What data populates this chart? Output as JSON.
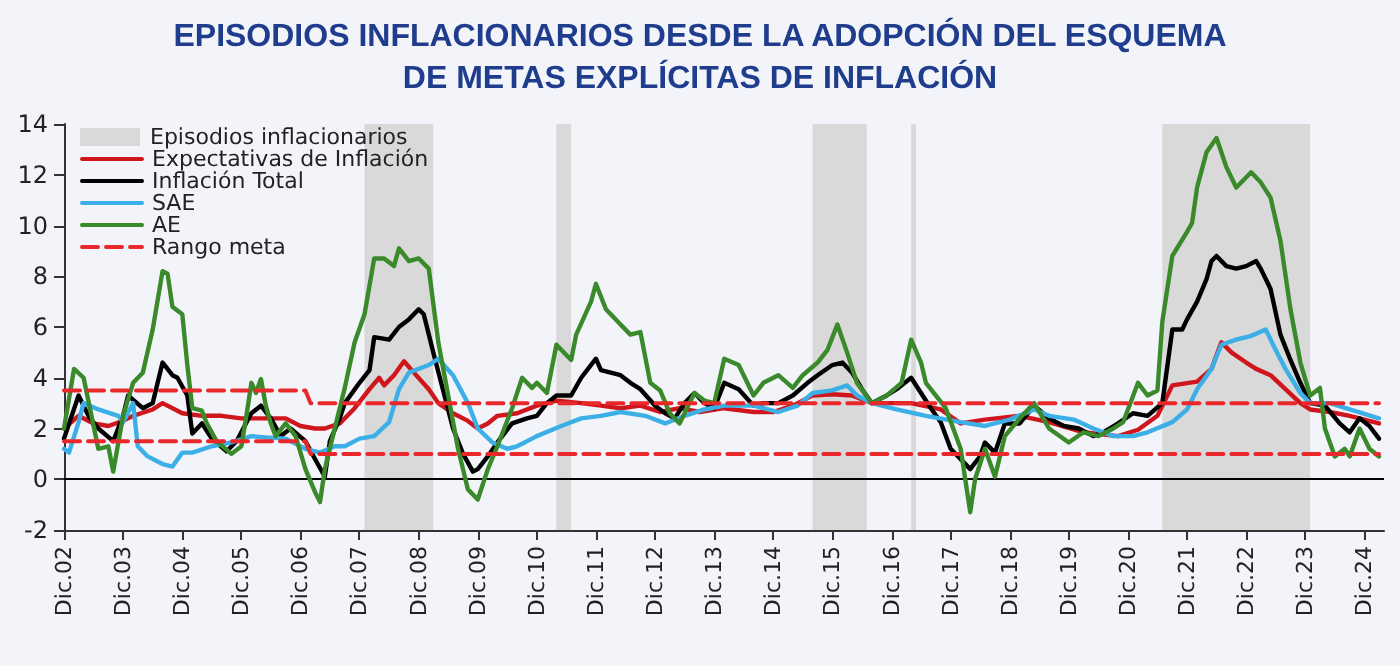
{
  "chart_data": {
    "type": "line",
    "title": "EPISODIOS INFLACIONARIOS DESDE LA ADOPCIÓN DEL ESQUEMA\nDE METAS EXPLÍCITAS DE INFLACIÓN",
    "xlim": [
      "2002-12",
      "2025-04"
    ],
    "xticks": [
      {
        "value": "2002-12",
        "label": "Dic.02"
      },
      {
        "value": "2003-12",
        "label": "Dic.03"
      },
      {
        "value": "2004-12",
        "label": "Dic.04"
      },
      {
        "value": "2005-12",
        "label": "Dic.05"
      },
      {
        "value": "2006-12",
        "label": "Dic.06"
      },
      {
        "value": "2007-12",
        "label": "Dic.07"
      },
      {
        "value": "2008-12",
        "label": "Dic.08"
      },
      {
        "value": "2009-12",
        "label": "Dic.09"
      },
      {
        "value": "2010-12",
        "label": "Dic.10"
      },
      {
        "value": "2011-12",
        "label": "Dic.11"
      },
      {
        "value": "2012-12",
        "label": "Dic.12"
      },
      {
        "value": "2013-12",
        "label": "Dic.13"
      },
      {
        "value": "2014-12",
        "label": "Dic.14"
      },
      {
        "value": "2015-12",
        "label": "Dic.15"
      },
      {
        "value": "2016-12",
        "label": "Dic.16"
      },
      {
        "value": "2017-12",
        "label": "Dic.17"
      },
      {
        "value": "2018-12",
        "label": "Dic.18"
      },
      {
        "value": "2019-12",
        "label": "Dic.19"
      },
      {
        "value": "2020-12",
        "label": "Dic.20"
      },
      {
        "value": "2021-12",
        "label": "Dic.21"
      },
      {
        "value": "2022-12",
        "label": "Dic.22"
      },
      {
        "value": "2023-12",
        "label": "Dic.23"
      },
      {
        "value": "2024-12",
        "label": "Dic.24"
      }
    ],
    "ylim": [
      -2,
      14
    ],
    "yticks": [
      -2,
      0,
      2,
      4,
      6,
      8,
      10,
      12,
      14
    ],
    "grid": false,
    "legend": "top left",
    "marker": "none",
    "line_style": "solid",
    "bands": [
      {
        "axis": "x",
        "from": "2008-01",
        "to": "2009-03",
        "label": "Episodios inflacionarios",
        "color": "#d9d9d9"
      },
      {
        "axis": "x",
        "from": "2011-04",
        "to": "2011-07",
        "color": "#d9d9d9"
      },
      {
        "axis": "x",
        "from": "2015-08",
        "to": "2016-07",
        "color": "#d9d9d9"
      },
      {
        "axis": "x",
        "from": "2017-04",
        "to": "2017-05",
        "color": "#d9d9d9"
      },
      {
        "axis": "x",
        "from": "2021-07",
        "to": "2024-01",
        "color": "#d9d9d9"
      }
    ],
    "ref_lines": [
      {
        "axis": "y",
        "value": 0,
        "color": "#000000"
      }
    ],
    "series": [
      {
        "name": "Expectativas de Inflación",
        "color": "#d0161d",
        "x": [
          "2002-12",
          "2003-03",
          "2003-06",
          "2003-09",
          "2003-12",
          "2004-02",
          "2004-06",
          "2004-08",
          "2004-12",
          "2005-04",
          "2005-08",
          "2005-12",
          "2006-05",
          "2006-09",
          "2006-12",
          "2007-03",
          "2007-05",
          "2007-08",
          "2007-11",
          "2008-02",
          "2008-04",
          "2008-05",
          "2008-07",
          "2008-09",
          "2008-11",
          "2009-02",
          "2009-04",
          "2009-07",
          "2009-10",
          "2009-12",
          "2010-02",
          "2010-04",
          "2010-08",
          "2010-12",
          "2011-04",
          "2011-09",
          "2012-01",
          "2012-05",
          "2012-09",
          "2013-01",
          "2013-05",
          "2013-09",
          "2014-02",
          "2014-08",
          "2014-12",
          "2015-04",
          "2015-08",
          "2015-12",
          "2016-04",
          "2016-08",
          "2017-04",
          "2017-10",
          "2018-02",
          "2018-07",
          "2019-02",
          "2019-08",
          "2020-03",
          "2020-10",
          "2021-02",
          "2021-06",
          "2021-09",
          "2022-02",
          "2022-05",
          "2022-07",
          "2022-09",
          "2022-12",
          "2023-02",
          "2023-05",
          "2023-08",
          "2023-11",
          "2024-01",
          "2024-05",
          "2024-09",
          "2025-03"
        ],
        "values": [
          2.0,
          2.5,
          2.2,
          2.1,
          2.3,
          2.5,
          2.75,
          3.0,
          2.6,
          2.5,
          2.5,
          2.4,
          2.4,
          2.4,
          2.1,
          2.0,
          2.0,
          2.2,
          2.8,
          3.55,
          4.0,
          3.7,
          4.1,
          4.65,
          4.2,
          3.55,
          3.0,
          2.6,
          2.3,
          2.0,
          2.2,
          2.5,
          2.6,
          2.9,
          3.1,
          3.0,
          2.9,
          2.8,
          2.9,
          2.65,
          2.8,
          2.65,
          2.8,
          2.65,
          2.65,
          2.9,
          3.3,
          3.35,
          3.3,
          3.0,
          3.0,
          2.75,
          2.2,
          2.35,
          2.5,
          2.25,
          1.85,
          1.7,
          1.95,
          2.5,
          3.7,
          3.85,
          4.35,
          5.4,
          5.0,
          4.6,
          4.35,
          4.1,
          3.55,
          3.0,
          2.75,
          2.65,
          2.5,
          2.2
        ]
      },
      {
        "name": "Inflación Total",
        "color": "#000000",
        "x": [
          "2002-12",
          "2003-03",
          "2003-05",
          "2003-07",
          "2003-10",
          "2003-12",
          "2004-01",
          "2004-04",
          "2004-06",
          "2004-08",
          "2004-10",
          "2004-11",
          "2005-01",
          "2005-02",
          "2005-04",
          "2005-06",
          "2005-09",
          "2005-11",
          "2006-02",
          "2006-04",
          "2006-06",
          "2006-08",
          "2006-10",
          "2007-01",
          "2007-03",
          "2007-05",
          "2007-06",
          "2007-08",
          "2007-09",
          "2007-12",
          "2008-02",
          "2008-03",
          "2008-06",
          "2008-08",
          "2008-10",
          "2008-12",
          "2009-01",
          "2009-03",
          "2009-05",
          "2009-07",
          "2009-09",
          "2009-11",
          "2009-12",
          "2010-02",
          "2010-04",
          "2010-07",
          "2010-10",
          "2010-12",
          "2011-02",
          "2011-04",
          "2011-07",
          "2011-09",
          "2011-12",
          "2012-01",
          "2012-05",
          "2012-07",
          "2012-09",
          "2012-12",
          "2013-02",
          "2013-04",
          "2013-06",
          "2013-08",
          "2013-10",
          "2013-12",
          "2014-02",
          "2014-05",
          "2014-08",
          "2014-10",
          "2015-01",
          "2015-04",
          "2015-07",
          "2015-09",
          "2015-12",
          "2016-02",
          "2016-04",
          "2016-06",
          "2016-08",
          "2016-11",
          "2017-01",
          "2017-04",
          "2017-06",
          "2017-08",
          "2017-10",
          "2017-12",
          "2018-04",
          "2018-06",
          "2018-07",
          "2018-09",
          "2018-11",
          "2019-02",
          "2019-05",
          "2019-08",
          "2019-11",
          "2020-02",
          "2020-05",
          "2020-07",
          "2020-10",
          "2021-01",
          "2021-04",
          "2021-07",
          "2021-09",
          "2021-11",
          "2021-12",
          "2022-02",
          "2022-04",
          "2022-05",
          "2022-06",
          "2022-08",
          "2022-10",
          "2022-12",
          "2023-02",
          "2023-03",
          "2023-05",
          "2023-07",
          "2023-09",
          "2023-11",
          "2024-01",
          "2024-04",
          "2024-07",
          "2024-09",
          "2024-11",
          "2025-01",
          "2025-03"
        ],
        "values": [
          1.6,
          3.3,
          2.5,
          2.0,
          1.5,
          2.5,
          3.3,
          2.8,
          3.0,
          4.6,
          4.1,
          4.0,
          3.3,
          1.8,
          2.2,
          1.6,
          1.1,
          1.5,
          2.6,
          2.9,
          2.4,
          1.7,
          2.0,
          1.5,
          0.8,
          0.1,
          1.5,
          2.4,
          3.0,
          3.8,
          4.3,
          5.6,
          5.5,
          6.0,
          6.3,
          6.7,
          6.5,
          5.0,
          3.5,
          2.0,
          1.0,
          0.3,
          0.4,
          0.9,
          1.45,
          2.2,
          2.4,
          2.5,
          3.0,
          3.3,
          3.3,
          4.0,
          4.75,
          4.3,
          4.1,
          3.8,
          3.55,
          2.9,
          2.6,
          2.4,
          3.0,
          3.4,
          3.0,
          2.8,
          3.8,
          3.55,
          2.9,
          3.0,
          3.0,
          3.3,
          3.8,
          4.1,
          4.5,
          4.6,
          4.2,
          3.55,
          3.0,
          3.3,
          3.55,
          4.0,
          3.4,
          2.8,
          2.25,
          1.2,
          0.4,
          0.9,
          1.45,
          1.05,
          2.2,
          2.2,
          2.9,
          2.4,
          2.1,
          2.0,
          1.7,
          1.85,
          2.2,
          2.6,
          2.5,
          3.0,
          5.9,
          5.9,
          6.3,
          7.0,
          7.9,
          8.6,
          8.8,
          8.4,
          8.3,
          8.4,
          8.6,
          8.3,
          7.5,
          5.7,
          4.7,
          3.8,
          3.0,
          2.9,
          2.2,
          1.85,
          2.4,
          2.1,
          1.6
        ]
      },
      {
        "name": "SAE",
        "color": "#3cb0e6",
        "x": [
          "2002-12",
          "2003-01",
          "2003-03",
          "2003-04",
          "2003-07",
          "2003-11",
          "2003-12",
          "2004-02",
          "2004-03",
          "2004-05",
          "2004-08",
          "2004-10",
          "2004-12",
          "2005-02",
          "2005-06",
          "2005-10",
          "2006-02",
          "2006-05",
          "2006-09",
          "2007-01",
          "2007-04",
          "2007-07",
          "2007-09",
          "2007-12",
          "2008-03",
          "2008-06",
          "2008-08",
          "2008-10",
          "2009-02",
          "2009-04",
          "2009-07",
          "2009-10",
          "2009-12",
          "2010-03",
          "2010-06",
          "2010-08",
          "2010-12",
          "2011-05",
          "2011-09",
          "2012-01",
          "2012-05",
          "2012-10",
          "2013-02",
          "2013-06",
          "2013-10",
          "2014-02",
          "2014-08",
          "2015-01",
          "2015-05",
          "2015-08",
          "2015-12",
          "2016-03",
          "2016-05",
          "2016-08",
          "2017-01",
          "2017-07",
          "2018-02",
          "2018-07",
          "2018-12",
          "2019-05",
          "2019-08",
          "2020-01",
          "2020-05",
          "2020-09",
          "2021-01",
          "2021-04",
          "2021-09",
          "2021-12",
          "2022-02",
          "2022-05",
          "2022-07",
          "2022-10",
          "2023-01",
          "2023-04",
          "2023-06",
          "2023-08",
          "2023-11",
          "2024-01",
          "2024-05",
          "2024-09",
          "2025-03"
        ],
        "values": [
          1.2,
          1.05,
          2.25,
          3.0,
          2.75,
          2.5,
          2.25,
          3.0,
          1.3,
          0.9,
          0.6,
          0.5,
          1.05,
          1.05,
          1.3,
          1.45,
          1.7,
          1.65,
          1.6,
          1.2,
          1.05,
          1.3,
          1.3,
          1.6,
          1.7,
          2.25,
          3.55,
          4.2,
          4.5,
          4.75,
          4.1,
          3.0,
          2.0,
          1.45,
          1.2,
          1.3,
          1.7,
          2.1,
          2.4,
          2.5,
          2.65,
          2.5,
          2.2,
          2.5,
          2.75,
          2.9,
          2.9,
          2.65,
          2.9,
          3.4,
          3.5,
          3.7,
          3.3,
          3.0,
          2.75,
          2.5,
          2.25,
          2.1,
          2.35,
          2.75,
          2.5,
          2.35,
          2.0,
          1.7,
          1.7,
          1.85,
          2.25,
          2.75,
          3.55,
          4.35,
          5.3,
          5.5,
          5.65,
          5.9,
          5.1,
          4.35,
          3.4,
          3.0,
          3.0,
          2.75,
          2.4
        ]
      },
      {
        "name": "AE",
        "color": "#3a8a2c",
        "x": [
          "2002-12",
          "2003-02",
          "2003-04",
          "2003-07",
          "2003-09",
          "2003-10",
          "2003-12",
          "2004-02",
          "2004-04",
          "2004-06",
          "2004-08",
          "2004-09",
          "2004-10",
          "2004-12",
          "2005-01",
          "2005-02",
          "2005-04",
          "2005-05",
          "2005-07",
          "2005-10",
          "2005-12",
          "2006-01",
          "2006-02",
          "2006-03",
          "2006-04",
          "2006-05",
          "2006-06",
          "2006-07",
          "2006-09",
          "2006-11",
          "2007-01",
          "2007-03",
          "2007-04",
          "2007-05",
          "2007-07",
          "2007-09",
          "2007-11",
          "2008-01",
          "2008-03",
          "2008-05",
          "2008-07",
          "2008-08",
          "2008-10",
          "2008-12",
          "2009-02",
          "2009-04",
          "2009-06",
          "2009-08",
          "2009-10",
          "2009-12",
          "2010-02",
          "2010-04",
          "2010-07",
          "2010-09",
          "2010-11",
          "2010-12",
          "2011-02",
          "2011-04",
          "2011-07",
          "2011-08",
          "2011-11",
          "2011-12",
          "2012-02",
          "2012-05",
          "2012-07",
          "2012-09",
          "2012-11",
          "2013-01",
          "2013-03",
          "2013-05",
          "2013-07",
          "2013-08",
          "2013-10",
          "2013-12",
          "2014-02",
          "2014-05",
          "2014-08",
          "2014-10",
          "2015-01",
          "2015-04",
          "2015-06",
          "2015-09",
          "2015-11",
          "2016-01",
          "2016-03",
          "2016-05",
          "2016-08",
          "2016-11",
          "2017-02",
          "2017-04",
          "2017-06",
          "2017-07",
          "2017-11",
          "2018-02",
          "2018-04",
          "2018-05",
          "2018-07",
          "2018-09",
          "2018-11",
          "2019-02",
          "2019-05",
          "2019-08",
          "2019-12",
          "2020-03",
          "2020-06",
          "2020-09",
          "2020-11",
          "2021-02",
          "2021-04",
          "2021-06",
          "2021-07",
          "2021-09",
          "2021-12",
          "2022-01",
          "2022-02",
          "2022-04",
          "2022-06",
          "2022-08",
          "2022-10",
          "2023-01",
          "2023-03",
          "2023-05",
          "2023-07",
          "2023-09",
          "2023-11",
          "2024-01",
          "2024-03",
          "2024-04",
          "2024-06",
          "2024-08",
          "2024-09",
          "2024-11",
          "2025-01",
          "2025-03"
        ],
        "values": [
          2.0,
          4.35,
          4.0,
          1.2,
          1.3,
          0.3,
          2.5,
          3.8,
          4.2,
          5.9,
          8.2,
          8.1,
          6.8,
          6.5,
          4.5,
          2.8,
          2.7,
          2.2,
          1.5,
          1.0,
          1.3,
          2.5,
          3.8,
          3.4,
          3.95,
          2.9,
          2.2,
          1.7,
          2.2,
          1.7,
          0.4,
          -0.5,
          -0.9,
          0.4,
          2.0,
          3.6,
          5.4,
          6.5,
          8.7,
          8.7,
          8.4,
          9.1,
          8.6,
          8.7,
          8.3,
          5.4,
          3.3,
          1.2,
          -0.4,
          -0.8,
          0.4,
          1.3,
          2.8,
          4.0,
          3.6,
          3.8,
          3.4,
          5.3,
          4.7,
          5.7,
          7.0,
          7.7,
          6.7,
          6.1,
          5.7,
          5.8,
          3.8,
          3.5,
          2.6,
          2.2,
          3.0,
          3.4,
          3.1,
          3.0,
          4.75,
          4.5,
          3.3,
          3.8,
          4.1,
          3.6,
          4.1,
          4.6,
          5.1,
          6.1,
          5.0,
          3.8,
          3.0,
          3.3,
          3.8,
          5.5,
          4.6,
          3.8,
          2.8,
          1.2,
          -1.3,
          0.0,
          1.2,
          0.1,
          1.7,
          2.4,
          3.0,
          2.0,
          1.45,
          1.85,
          1.7,
          2.0,
          2.25,
          3.8,
          3.3,
          3.5,
          6.2,
          8.8,
          9.75,
          10.1,
          11.5,
          12.9,
          13.45,
          12.3,
          11.5,
          12.1,
          11.7,
          11.1,
          9.4,
          6.7,
          4.6,
          3.3,
          3.6,
          2.0,
          0.9,
          1.2,
          0.9,
          2.0,
          1.2,
          0.9
        ]
      },
      {
        "name": "Rango meta",
        "color": "#e8282b",
        "line_style": "dashed",
        "x": [
          "2002-12",
          "2007-01",
          "2007-02",
          "2025-03"
        ],
        "values": [
          3.5,
          3.5,
          3.0,
          3.0
        ]
      },
      {
        "color": "#e8282b",
        "line_style": "dashed",
        "x": [
          "2002-12",
          "2007-01",
          "2007-02",
          "2025-03"
        ],
        "values": [
          1.5,
          1.5,
          1.0,
          1.0
        ]
      }
    ]
  }
}
